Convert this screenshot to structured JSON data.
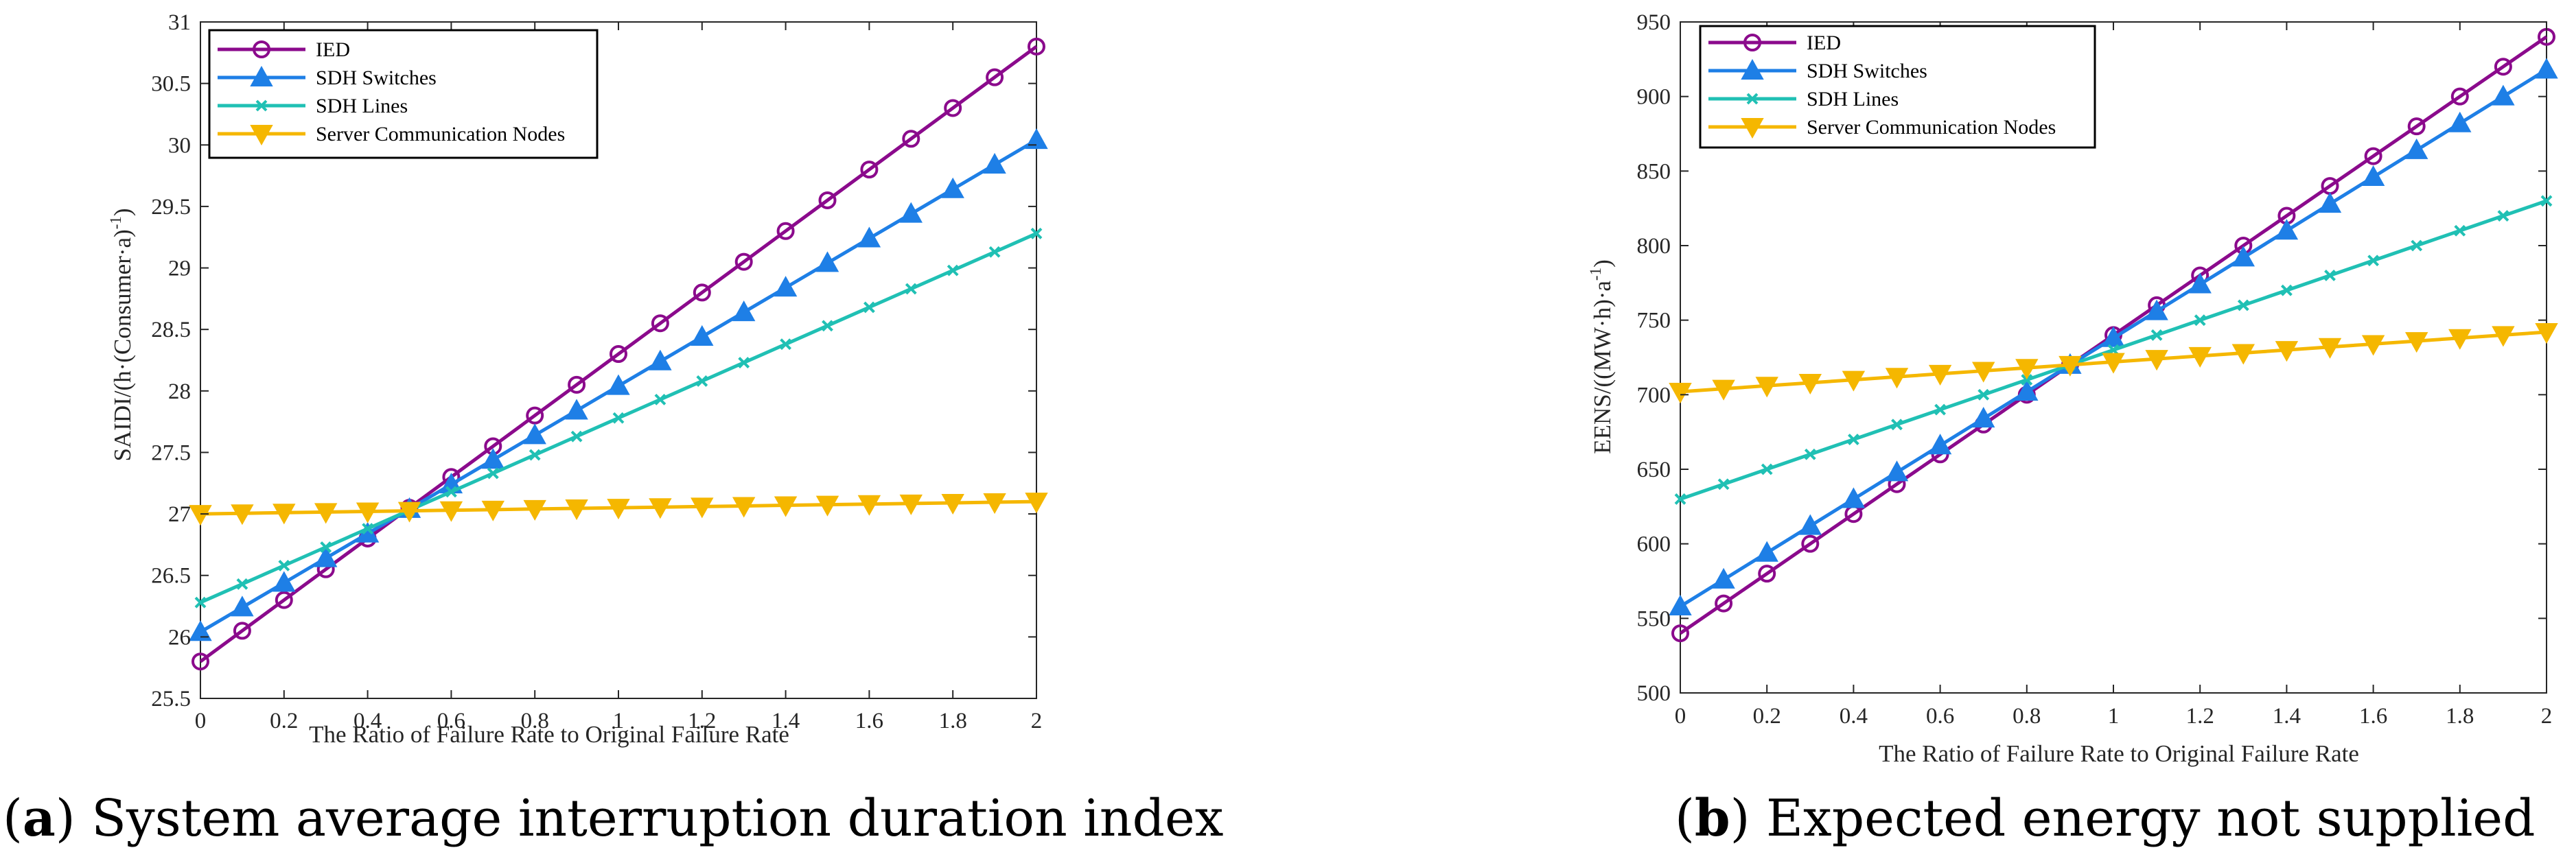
{
  "colors": {
    "ied": "#8B0A8C",
    "sdh_switches": "#1E7FE6",
    "sdh_lines": "#20C0B4",
    "server_nodes": "#F5B700",
    "axis": "#262626"
  },
  "chart_data": [
    {
      "id": "a",
      "type": "line",
      "title": "",
      "xlabel": "The Ratio of Failure Rate to Original Failure Rate",
      "ylabel": "SAIDI/(h·(Consumer·a)",
      "ylabel_sup": "-1",
      "ylabel_end": ")",
      "xlim": [
        0,
        2
      ],
      "ylim": [
        25.5,
        31
      ],
      "x_ticks": [
        "0",
        "0.2",
        "0.4",
        "0.6",
        "0.8",
        "1",
        "1.2",
        "1.4",
        "1.6",
        "1.8",
        "2"
      ],
      "y_ticks": [
        "25.5",
        "26",
        "26.5",
        "27",
        "27.5",
        "28",
        "28.5",
        "29",
        "29.5",
        "30",
        "30.5",
        "31"
      ],
      "legend_position": "top-left",
      "x": [
        0,
        0.1,
        0.2,
        0.3,
        0.4,
        0.5,
        0.6,
        0.7,
        0.8,
        0.9,
        1.0,
        1.1,
        1.2,
        1.3,
        1.4,
        1.5,
        1.6,
        1.7,
        1.8,
        1.9,
        2.0
      ],
      "series": [
        {
          "name": "IED",
          "color_key": "ied",
          "marker": "circle",
          "values": [
            25.8,
            26.05,
            26.3,
            26.55,
            26.8,
            27.05,
            27.3,
            27.55,
            27.8,
            28.05,
            28.3,
            28.55,
            28.8,
            29.05,
            29.3,
            29.55,
            29.8,
            30.05,
            30.3,
            30.55,
            30.8
          ]
        },
        {
          "name": "SDH Switches",
          "color_key": "sdh_switches",
          "marker": "triangle-up",
          "values": [
            26.04,
            26.24,
            26.44,
            26.64,
            26.84,
            27.04,
            27.24,
            27.44,
            27.64,
            27.84,
            28.04,
            28.24,
            28.44,
            28.64,
            28.84,
            29.04,
            29.24,
            29.44,
            29.64,
            29.84,
            30.04
          ]
        },
        {
          "name": "SDH Lines",
          "color_key": "sdh_lines",
          "marker": "x",
          "values": [
            26.28,
            26.43,
            26.58,
            26.73,
            26.88,
            27.03,
            27.18,
            27.33,
            27.48,
            27.63,
            27.78,
            27.93,
            28.08,
            28.23,
            28.38,
            28.53,
            28.68,
            28.83,
            28.98,
            29.13,
            29.28
          ]
        },
        {
          "name": "Server Communication Nodes",
          "color_key": "server_nodes",
          "marker": "triangle-down",
          "values": [
            27.0,
            27.005,
            27.01,
            27.015,
            27.02,
            27.025,
            27.03,
            27.035,
            27.04,
            27.045,
            27.05,
            27.055,
            27.06,
            27.065,
            27.07,
            27.075,
            27.08,
            27.085,
            27.09,
            27.095,
            27.1
          ]
        }
      ],
      "caption_letter": "a",
      "caption_text": " System average interruption duration index"
    },
    {
      "id": "b",
      "type": "line",
      "title": "",
      "xlabel": "The Ratio of Failure Rate to Original Failure Rate",
      "ylabel": "EENS/((MW·h)·a",
      "ylabel_sup": "-1",
      "ylabel_end": ")",
      "xlim": [
        0,
        2
      ],
      "ylim": [
        500,
        950
      ],
      "x_ticks": [
        "0",
        "0.2",
        "0.4",
        "0.6",
        "0.8",
        "1",
        "1.2",
        "1.4",
        "1.6",
        "1.8",
        "2"
      ],
      "y_ticks": [
        "500",
        "550",
        "600",
        "650",
        "700",
        "750",
        "800",
        "850",
        "900",
        "950"
      ],
      "legend_position": "top-left",
      "x": [
        0,
        0.1,
        0.2,
        0.3,
        0.4,
        0.5,
        0.6,
        0.7,
        0.8,
        0.9,
        1.0,
        1.1,
        1.2,
        1.3,
        1.4,
        1.5,
        1.6,
        1.7,
        1.8,
        1.9,
        2.0
      ],
      "series": [
        {
          "name": "IED",
          "color_key": "ied",
          "marker": "circle",
          "values": [
            540,
            560,
            580,
            600,
            620,
            640,
            660,
            680,
            700,
            720,
            740,
            760,
            780,
            800,
            820,
            840,
            860,
            880,
            900,
            920,
            940
          ]
        },
        {
          "name": "SDH Switches",
          "color_key": "sdh_switches",
          "marker": "triangle-up",
          "values": [
            558,
            576,
            594,
            612,
            630,
            648,
            666,
            684,
            702,
            720,
            738,
            756,
            774,
            792,
            810,
            828,
            846,
            864,
            882,
            900,
            918
          ]
        },
        {
          "name": "SDH Lines",
          "color_key": "sdh_lines",
          "marker": "x",
          "values": [
            630,
            640,
            650,
            660,
            670,
            680,
            690,
            700,
            710,
            720,
            730,
            740,
            750,
            760,
            770,
            780,
            790,
            800,
            810,
            820,
            830
          ]
        },
        {
          "name": "Server Communication Nodes",
          "color_key": "server_nodes",
          "marker": "triangle-down",
          "values": [
            702,
            704,
            706,
            708,
            710,
            712,
            714,
            716,
            718,
            720,
            722,
            724,
            726,
            728,
            730,
            732,
            734,
            736,
            738,
            740,
            742
          ]
        }
      ],
      "caption_letter": "b",
      "caption_text": " Expected energy not supplied"
    }
  ]
}
